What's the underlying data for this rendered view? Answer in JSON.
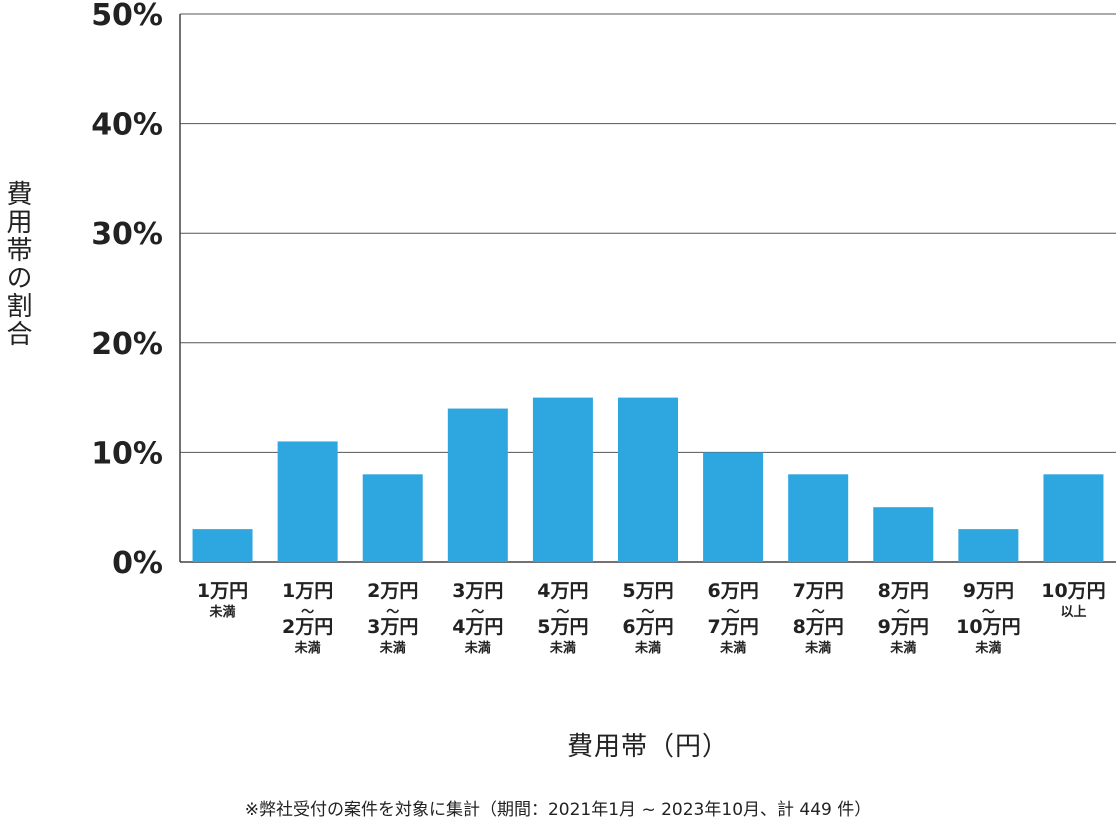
{
  "chart_data": {
    "type": "bar",
    "title": "",
    "ylabel": "費用帯の割合",
    "xlabel": "費用帯（円）",
    "ylim": [
      0,
      50
    ],
    "yticks": [
      "0%",
      "10%",
      "20%",
      "30%",
      "40%",
      "50%"
    ],
    "categories": [
      {
        "from": "1万円",
        "to": "未満"
      },
      {
        "from": "1万円",
        "sep": "〜",
        "to": "2万円",
        "suffix": "未満"
      },
      {
        "from": "2万円",
        "sep": "〜",
        "to": "3万円",
        "suffix": "未満"
      },
      {
        "from": "3万円",
        "sep": "〜",
        "to": "4万円",
        "suffix": "未満"
      },
      {
        "from": "4万円",
        "sep": "〜",
        "to": "5万円",
        "suffix": "未満"
      },
      {
        "from": "5万円",
        "sep": "〜",
        "to": "6万円",
        "suffix": "未満"
      },
      {
        "from": "6万円",
        "sep": "〜",
        "to": "7万円",
        "suffix": "未満"
      },
      {
        "from": "7万円",
        "sep": "〜",
        "to": "8万円",
        "suffix": "未満"
      },
      {
        "from": "8万円",
        "sep": "〜",
        "to": "9万円",
        "suffix": "未満"
      },
      {
        "from": "9万円",
        "sep": "〜",
        "to": "10万円",
        "suffix": "未満"
      },
      {
        "from": "10万円",
        "to": "以上"
      }
    ],
    "values": [
      3,
      11,
      8,
      14,
      15,
      15,
      10,
      8,
      5,
      3,
      8
    ],
    "bar_color": "#2ea7e0",
    "grid": true
  },
  "footnote": "※弊社受付の案件を対象に集計（期間：2021年1月 ~ 2023年10月、計 449 件）"
}
